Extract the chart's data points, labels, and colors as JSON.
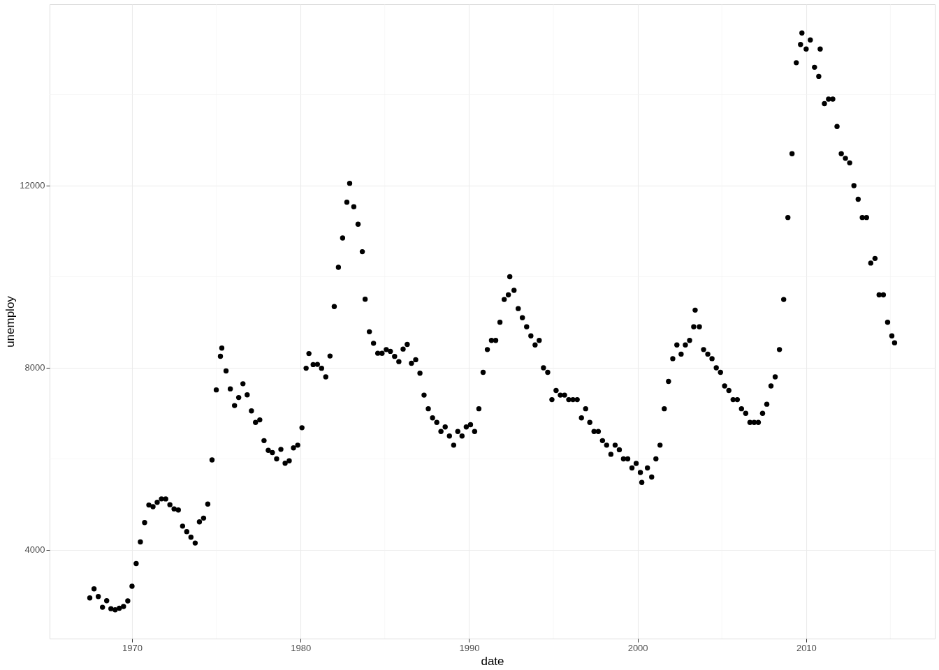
{
  "chart_data": {
    "type": "scatter",
    "xlabel": "date",
    "ylabel": "unemploy",
    "x": [
      "1967-07",
      "1967-10",
      "1968-01",
      "1968-04",
      "1968-07",
      "1968-10",
      "1969-01",
      "1969-04",
      "1969-07",
      "1969-10",
      "1970-01",
      "1970-04",
      "1970-07",
      "1970-10",
      "1971-01",
      "1971-04",
      "1971-07",
      "1971-10",
      "1972-01",
      "1972-04",
      "1972-07",
      "1972-10",
      "1973-01",
      "1973-04",
      "1973-07",
      "1973-10",
      "1974-01",
      "1974-04",
      "1974-07",
      "1974-10",
      "1975-01",
      "1975-04",
      "1975-05",
      "1975-08",
      "1975-11",
      "1976-02",
      "1976-05",
      "1976-08",
      "1976-11",
      "1977-02",
      "1977-05",
      "1977-08",
      "1977-11",
      "1978-02",
      "1978-05",
      "1978-08",
      "1978-11",
      "1979-02",
      "1979-05",
      "1979-08",
      "1979-11",
      "1980-02",
      "1980-05",
      "1980-07",
      "1980-10",
      "1981-01",
      "1981-04",
      "1981-07",
      "1981-10",
      "1982-01",
      "1982-04",
      "1982-07",
      "1982-10",
      "1982-12",
      "1983-03",
      "1983-06",
      "1983-09",
      "1983-11",
      "1984-02",
      "1984-05",
      "1984-08",
      "1984-11",
      "1985-02",
      "1985-05",
      "1985-08",
      "1985-11",
      "1986-02",
      "1986-05",
      "1986-08",
      "1986-11",
      "1987-02",
      "1987-05",
      "1987-08",
      "1987-11",
      "1988-02",
      "1988-05",
      "1988-08",
      "1988-11",
      "1989-02",
      "1989-05",
      "1989-08",
      "1989-11",
      "1990-02",
      "1990-05",
      "1990-08",
      "1990-11",
      "1991-02",
      "1991-05",
      "1991-08",
      "1991-11",
      "1992-02",
      "1992-05",
      "1992-06",
      "1992-09",
      "1992-12",
      "1993-03",
      "1993-06",
      "1993-09",
      "1993-12",
      "1994-03",
      "1994-06",
      "1994-09",
      "1994-12",
      "1995-03",
      "1995-06",
      "1995-09",
      "1995-12",
      "1996-03",
      "1996-06",
      "1996-09",
      "1996-12",
      "1997-03",
      "1997-06",
      "1997-09",
      "1997-12",
      "1998-03",
      "1998-06",
      "1998-09",
      "1998-12",
      "1999-03",
      "1999-06",
      "1999-09",
      "1999-12",
      "2000-03",
      "2000-04",
      "2000-08",
      "2000-11",
      "2001-02",
      "2001-05",
      "2001-08",
      "2001-11",
      "2002-02",
      "2002-05",
      "2002-08",
      "2002-11",
      "2003-02",
      "2003-05",
      "2003-06",
      "2003-09",
      "2003-12",
      "2004-03",
      "2004-06",
      "2004-09",
      "2004-12",
      "2005-03",
      "2005-06",
      "2005-09",
      "2005-12",
      "2006-03",
      "2006-06",
      "2006-09",
      "2006-12",
      "2007-03",
      "2007-06",
      "2007-09",
      "2007-12",
      "2008-03",
      "2008-06",
      "2008-09",
      "2008-12",
      "2009-03",
      "2009-06",
      "2009-09",
      "2009-10",
      "2010-01",
      "2010-04",
      "2010-07",
      "2010-10",
      "2010-11",
      "2011-02",
      "2011-05",
      "2011-08",
      "2011-11",
      "2012-02",
      "2012-05",
      "2012-08",
      "2012-11",
      "2013-02",
      "2013-05",
      "2013-08",
      "2013-11",
      "2014-02",
      "2014-05",
      "2014-08",
      "2014-11",
      "2015-02",
      "2015-04"
    ],
    "values": [
      2944,
      3143,
      2976,
      2740,
      2883,
      2709,
      2685,
      2718,
      2758,
      2879,
      3201,
      3699,
      4175,
      4600,
      4986,
      4948,
      5045,
      5120,
      5119,
      4993,
      4901,
      4876,
      4522,
      4400,
      4279,
      4150,
      4615,
      4698,
      5007,
      5977,
      7514,
      8251,
      8431,
      7929,
      7537,
      7170,
      7346,
      7649,
      7404,
      7052,
      6800,
      6856,
      6400,
      6187,
      6136,
      6000,
      6208,
      5902,
      5958,
      6241,
      6300,
      6683,
      7990,
      8312,
      8070,
      8074,
      7989,
      7800,
      8258,
      9345,
      10206,
      10849,
      11635,
      12051,
      11535,
      11154,
      10550,
      9505,
      8791,
      8538,
      8319,
      8318,
      8400,
      8361,
      8250,
      8135,
      8411,
      8513,
      8100,
      8177,
      7880,
      7400,
      7100,
      6900,
      6800,
      6600,
      6700,
      6500,
      6300,
      6600,
      6500,
      6700,
      6750,
      6600,
      7100,
      7900,
      8400,
      8600,
      8600,
      9000,
      9500,
      9600,
      10000,
      9700,
      9300,
      9100,
      8900,
      8700,
      8500,
      8600,
      8000,
      7900,
      7300,
      7500,
      7400,
      7400,
      7300,
      7300,
      7300,
      6900,
      7100,
      6800,
      6600,
      6600,
      6400,
      6300,
      6100,
      6300,
      6200,
      6000,
      6000,
      5800,
      5900,
      5700,
      5481,
      5800,
      5600,
      6000,
      6300,
      7100,
      7700,
      8200,
      8500,
      8300,
      8500,
      8600,
      8900,
      9266,
      8900,
      8400,
      8300,
      8200,
      8000,
      7900,
      7600,
      7500,
      7300,
      7300,
      7100,
      7000,
      6800,
      6800,
      6800,
      7000,
      7200,
      7600,
      7800,
      8400,
      9500,
      11300,
      12700,
      14700,
      15100,
      15352,
      15000,
      15200,
      14600,
      14400,
      15000,
      13800,
      13900,
      13900,
      13300,
      12700,
      12600,
      12500,
      12000,
      11700,
      11300,
      11300,
      10300,
      10400,
      9600,
      9600,
      9000,
      8700,
      8549
    ],
    "color": "#000000",
    "marker": "circle",
    "xlim": [
      "1965-02-10",
      "2017-08-20"
    ],
    "xticks": [
      "1970",
      "1980",
      "1990",
      "2000",
      "2010"
    ],
    "ylim": [
      2052,
      15985
    ],
    "yticks": [
      4000,
      8000,
      12000
    ],
    "grid": true,
    "legend": false
  }
}
